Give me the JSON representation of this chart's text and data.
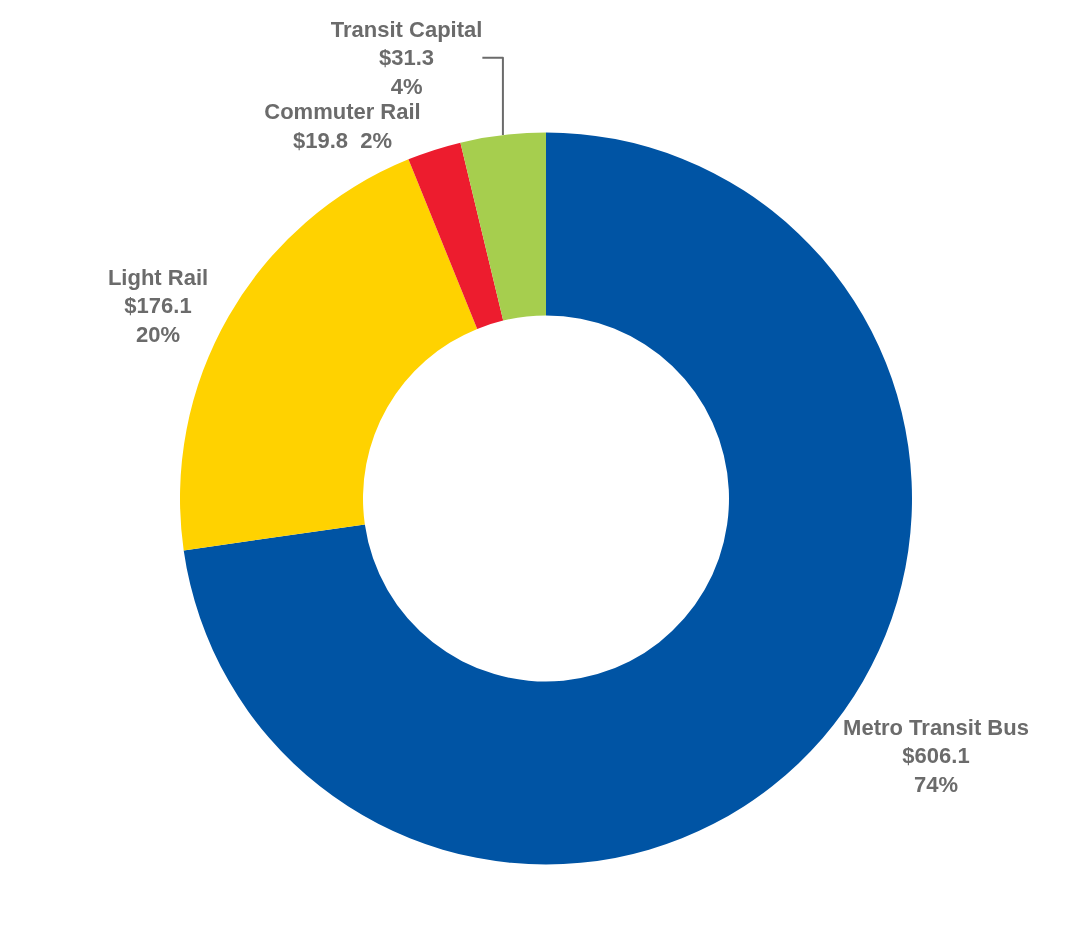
{
  "chart_data": {
    "type": "donut",
    "categories": [
      "Metro Transit Bus",
      "Light Rail",
      "Commuter Rail",
      "Transit Capital"
    ],
    "values": [
      606.1,
      176.1,
      19.8,
      31.3
    ],
    "value_labels": [
      "$606.1\n74%",
      "$176.1\n20%",
      "$19.8  2%",
      "$31.3\n4%"
    ],
    "colors": [
      "#0054a4",
      "#ffd200",
      "#ed1c2e",
      "#a6ce4e"
    ],
    "legend": false
  }
}
